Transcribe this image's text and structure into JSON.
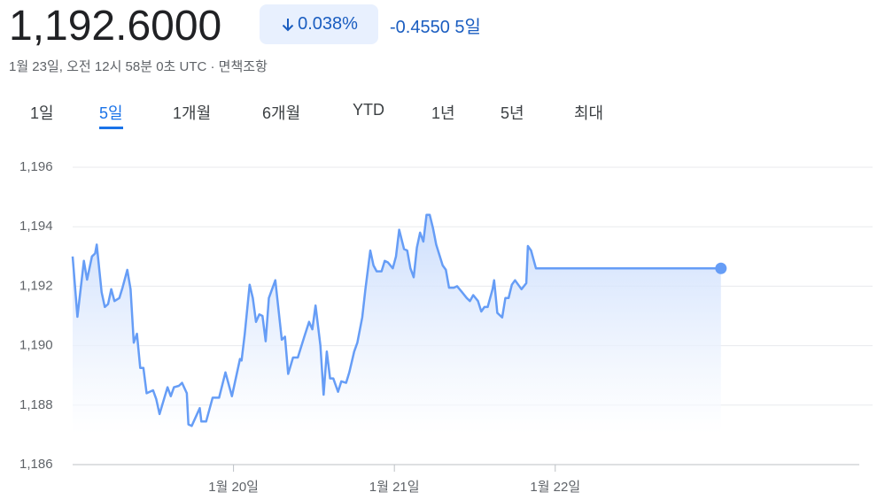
{
  "header": {
    "price": "1,192.6000",
    "change_percent": "0.038%",
    "change": "-0.4550",
    "period": "5일",
    "timestamp": "1월 23일, 오전 12시 58분 0초 UTC · 면책조항"
  },
  "tabs": [
    "1일",
    "5일",
    "1개월",
    "6개월",
    "YTD",
    "1년",
    "5년",
    "최대"
  ],
  "selected_tab": 1,
  "chart_data": {
    "type": "line",
    "color": "#669df6",
    "grid": true,
    "x": [
      0,
      0.03,
      0.07,
      0.09,
      0.12,
      0.14,
      0.15,
      0.18,
      0.2,
      0.22,
      0.24,
      0.26,
      0.29,
      0.31,
      0.34,
      0.36,
      0.38,
      0.4,
      0.42,
      0.44,
      0.46,
      0.5,
      0.52,
      0.54,
      0.59,
      0.61,
      0.63,
      0.66,
      0.68,
      0.71,
      0.72,
      0.74,
      0.79,
      0.8,
      0.83,
      0.87,
      0.91,
      0.95,
      0.99,
      1.04,
      1.05,
      1.07,
      1.1,
      1.12,
      1.14,
      1.16,
      1.18,
      1.2,
      1.22,
      1.26,
      1.3,
      1.32,
      1.34,
      1.37,
      1.4,
      1.44,
      1.47,
      1.49,
      1.51,
      1.54,
      1.56,
      1.58,
      1.6,
      1.62,
      1.65,
      1.67,
      1.7,
      1.72,
      1.75,
      1.77,
      1.8,
      1.82,
      1.85,
      1.87,
      1.89,
      1.92,
      1.94,
      1.96,
      1.99,
      2.01,
      2.03,
      2.06,
      2.08,
      2.1,
      2.12,
      2.14,
      2.16,
      2.18,
      2.2,
      2.22,
      2.24,
      2.26,
      2.3,
      2.32,
      2.34,
      2.37,
      2.39,
      2.42,
      2.45,
      2.47,
      2.49,
      2.52,
      2.54,
      2.56,
      2.58,
      2.61,
      2.62,
      2.64,
      2.67,
      2.69,
      2.71,
      2.73,
      2.75,
      2.77,
      2.79,
      2.82,
      2.83,
      2.85,
      2.88,
      4.03
    ],
    "values": [
      1193.0,
      1190.97,
      1192.85,
      1192.22,
      1193.0,
      1193.1,
      1193.4,
      1191.8,
      1191.3,
      1191.4,
      1191.9,
      1191.5,
      1191.6,
      1191.95,
      1192.55,
      1191.9,
      1190.1,
      1190.4,
      1189.25,
      1189.25,
      1188.4,
      1188.5,
      1188.2,
      1187.7,
      1188.6,
      1188.3,
      1188.6,
      1188.65,
      1188.75,
      1188.4,
      1187.35,
      1187.3,
      1187.9,
      1187.45,
      1187.45,
      1188.25,
      1188.25,
      1189.1,
      1188.3,
      1189.55,
      1189.5,
      1190.4,
      1192.05,
      1191.6,
      1190.8,
      1191.05,
      1191.0,
      1190.15,
      1191.6,
      1192.2,
      1190.2,
      1190.3,
      1189.05,
      1189.6,
      1189.6,
      1190.3,
      1190.8,
      1190.55,
      1191.35,
      1190.0,
      1188.35,
      1189.8,
      1188.9,
      1188.9,
      1188.45,
      1188.8,
      1188.75,
      1189.1,
      1189.8,
      1190.1,
      1190.95,
      1191.9,
      1193.2,
      1192.7,
      1192.5,
      1192.5,
      1192.85,
      1192.8,
      1192.6,
      1193.0,
      1193.9,
      1193.25,
      1193.2,
      1192.6,
      1192.3,
      1193.3,
      1193.8,
      1193.5,
      1194.4,
      1194.4,
      1193.95,
      1193.4,
      1192.7,
      1192.55,
      1191.95,
      1191.95,
      1192.0,
      1191.8,
      1191.6,
      1191.5,
      1191.7,
      1191.5,
      1191.15,
      1191.3,
      1191.3,
      1191.9,
      1192.2,
      1191.1,
      1190.95,
      1191.6,
      1191.6,
      1192.05,
      1192.2,
      1192.05,
      1191.9,
      1192.1,
      1193.35,
      1193.2,
      1192.6,
      1192.6
    ],
    "xlim": [
      0,
      4.89
    ],
    "xticks": [
      {
        "value": 1,
        "label": "1월 20일"
      },
      {
        "value": 2,
        "label": "1월 21일"
      },
      {
        "value": 3,
        "label": "1월 22일"
      }
    ],
    "ylim": [
      1186,
      1196
    ],
    "yticks": [
      {
        "value": 1186,
        "label": "1,186"
      },
      {
        "value": 1188,
        "label": "1,188"
      },
      {
        "value": 1190,
        "label": "1,190"
      },
      {
        "value": 1192,
        "label": "1,192"
      },
      {
        "value": 1194,
        "label": "1,194"
      },
      {
        "value": 1196,
        "label": "1,196"
      }
    ]
  }
}
